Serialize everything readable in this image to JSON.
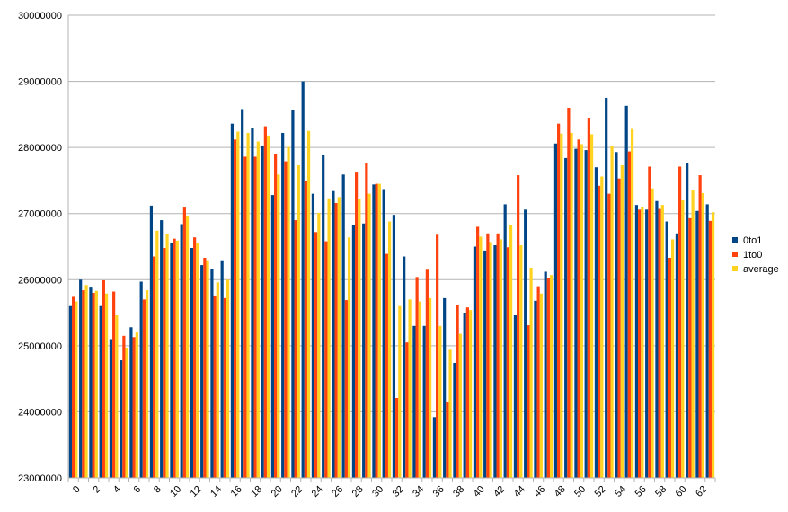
{
  "chart_data": {
    "type": "bar",
    "title": "",
    "xlabel": "",
    "ylabel": "",
    "ylim": [
      23000000,
      30000000
    ],
    "yticks": [
      23000000,
      24000000,
      25000000,
      26000000,
      27000000,
      28000000,
      29000000,
      30000000
    ],
    "ytick_labels": [
      "23000000",
      "24000000",
      "25000000",
      "26000000",
      "27000000",
      "28000000",
      "29000000",
      "30000000"
    ],
    "grid": "horizontal",
    "legend_position": "right",
    "categories": [
      "0",
      "1",
      "2",
      "3",
      "4",
      "5",
      "6",
      "7",
      "8",
      "9",
      "10",
      "11",
      "12",
      "13",
      "14",
      "15",
      "16",
      "17",
      "18",
      "19",
      "20",
      "21",
      "22",
      "23",
      "24",
      "25",
      "26",
      "27",
      "28",
      "29",
      "30",
      "31",
      "32",
      "33",
      "34",
      "35",
      "36",
      "37",
      "38",
      "39",
      "40",
      "41",
      "42",
      "43",
      "44",
      "45",
      "46",
      "47",
      "48",
      "49",
      "50",
      "51",
      "52",
      "53",
      "54",
      "55",
      "56",
      "57",
      "58",
      "59",
      "60",
      "61",
      "62",
      "63"
    ],
    "xtick_labels": [
      "0",
      "2",
      "4",
      "6",
      "8",
      "10",
      "12",
      "14",
      "16",
      "18",
      "20",
      "22",
      "24",
      "26",
      "28",
      "30",
      "32",
      "34",
      "36",
      "38",
      "40",
      "42",
      "44",
      "46",
      "48",
      "50",
      "52",
      "54",
      "56",
      "58",
      "60",
      "62"
    ],
    "series": [
      {
        "name": "0to1",
        "color": "#004586",
        "values": [
          25600000,
          26000000,
          25880000,
          25600000,
          25100000,
          24780000,
          25280000,
          25970000,
          27120000,
          26900000,
          26560000,
          26840000,
          26480000,
          26220000,
          26160000,
          26280000,
          28360000,
          28580000,
          28300000,
          28030000,
          27280000,
          28220000,
          28560000,
          29000000,
          27300000,
          27880000,
          27340000,
          27590000,
          26820000,
          26850000,
          27440000,
          27370000,
          26980000,
          26350000,
          25300000,
          25300000,
          23920000,
          25720000,
          24740000,
          25500000,
          26500000,
          26440000,
          26520000,
          27140000,
          25460000,
          27060000,
          25680000,
          26120000,
          28060000,
          27840000,
          27980000,
          27960000,
          27700000,
          28750000,
          27930000,
          28630000,
          27130000,
          27060000,
          27190000,
          26880000,
          26700000,
          27760000,
          27040000,
          27140000
        ]
      },
      {
        "name": "1to0",
        "color": "#ff420e",
        "values": [
          25740000,
          25840000,
          25800000,
          25990000,
          25820000,
          25150000,
          25130000,
          25700000,
          26350000,
          26480000,
          26620000,
          27090000,
          26640000,
          26330000,
          25760000,
          25720000,
          28120000,
          27860000,
          27860000,
          28320000,
          27900000,
          27790000,
          26900000,
          27500000,
          26720000,
          26580000,
          27160000,
          25690000,
          27620000,
          27760000,
          27450000,
          26390000,
          24210000,
          25050000,
          26040000,
          26150000,
          26680000,
          24150000,
          25620000,
          25580000,
          26800000,
          26700000,
          26700000,
          26490000,
          27580000,
          25310000,
          25900000,
          26020000,
          28360000,
          28600000,
          28120000,
          28450000,
          27420000,
          27300000,
          27530000,
          27940000,
          27060000,
          27710000,
          27070000,
          26330000,
          27710000,
          26930000,
          27580000,
          26890000
        ]
      },
      {
        "name": "average",
        "color": "#ffd320",
        "values": [
          25670000,
          25920000,
          25830000,
          25790000,
          25460000,
          24970000,
          25200000,
          25840000,
          26740000,
          26690000,
          26590000,
          26970000,
          26560000,
          26280000,
          25960000,
          26000000,
          28240000,
          28220000,
          28090000,
          28180000,
          27590000,
          28010000,
          27730000,
          28250000,
          27010000,
          27230000,
          27250000,
          26640000,
          27220000,
          27300000,
          27450000,
          26880000,
          25600000,
          25700000,
          25670000,
          25720000,
          25300000,
          24940000,
          25180000,
          25540000,
          26650000,
          26570000,
          26610000,
          26820000,
          26520000,
          26180000,
          25790000,
          26070000,
          28210000,
          28220000,
          28050000,
          28200000,
          27560000,
          28030000,
          27730000,
          28280000,
          27100000,
          27380000,
          27130000,
          26610000,
          27200000,
          27350000,
          27310000,
          27020000
        ]
      }
    ]
  }
}
